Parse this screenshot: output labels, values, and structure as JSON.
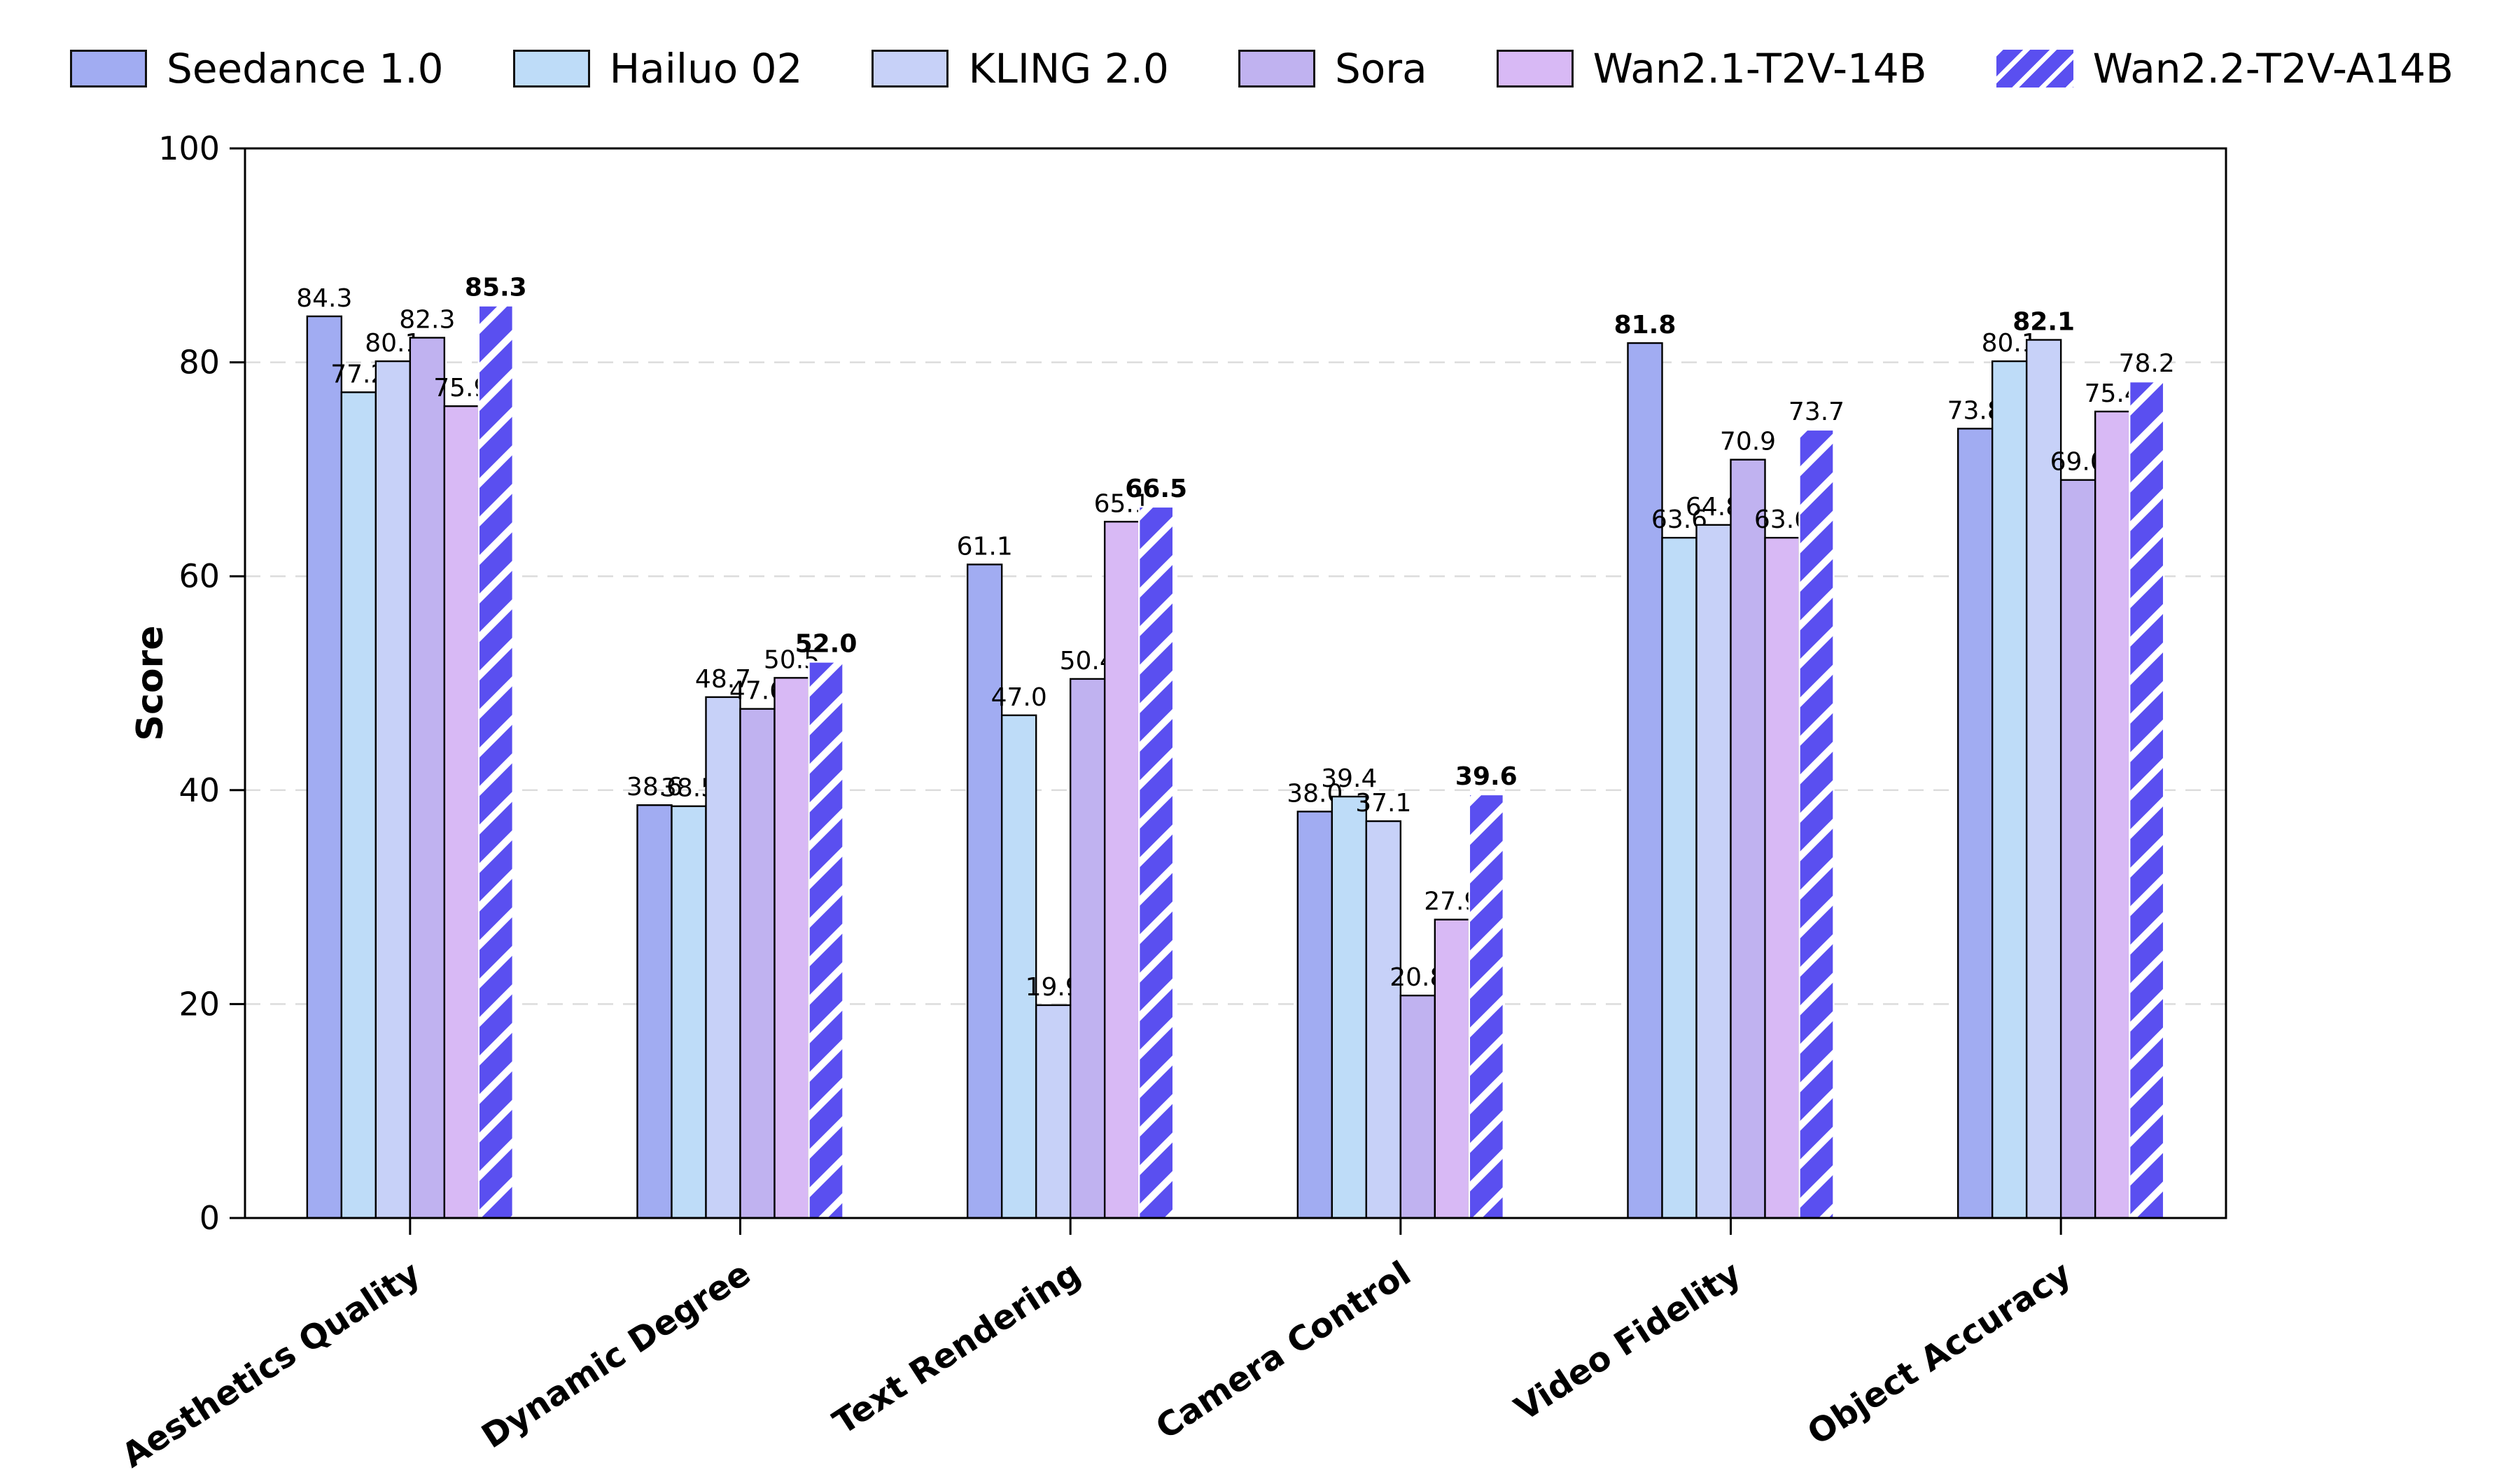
{
  "chart_data": {
    "type": "bar",
    "title": "",
    "ylabel": "Score",
    "xlabel": "",
    "ylim": [
      0,
      100
    ],
    "yticks": [
      0,
      20,
      40,
      60,
      80,
      100
    ],
    "grid": "horizontal dashed light-gray",
    "legend_position": "top row, outside plot",
    "bar_label_format": "one decimal",
    "bold_rule": "maximum value in each category is bold",
    "categories": [
      "Aesthetics Quality",
      "Dynamic Degree",
      "Text Rendering",
      "Camera Control",
      "Video Fidelity",
      "Object Accuracy"
    ],
    "series": [
      {
        "name": "Seedance 1.0",
        "color": "#A1ACF2",
        "hatch": false,
        "values": [
          84.3,
          38.6,
          61.1,
          38.0,
          81.8,
          73.8
        ]
      },
      {
        "name": "Hailuo 02",
        "color": "#BEDCF8",
        "hatch": false,
        "values": [
          77.2,
          38.5,
          47.0,
          39.4,
          63.6,
          80.1
        ]
      },
      {
        "name": "KLING 2.0",
        "color": "#C7D1F8",
        "hatch": false,
        "values": [
          80.1,
          48.7,
          19.9,
          37.1,
          64.8,
          82.1
        ]
      },
      {
        "name": "Sora",
        "color": "#C0B2F0",
        "hatch": false,
        "values": [
          82.3,
          47.6,
          50.4,
          20.8,
          70.9,
          69.0
        ]
      },
      {
        "name": "Wan2.1-T2V-14B",
        "color": "#D8B9F5",
        "hatch": false,
        "values": [
          75.9,
          50.5,
          65.1,
          27.9,
          63.6,
          75.4
        ]
      },
      {
        "name": "Wan2.2-T2V-A14B",
        "color": "#5A4FF0",
        "hatch": true,
        "hatch_color": "#FFFFFF",
        "values": [
          85.3,
          52.0,
          66.5,
          39.6,
          73.7,
          78.2
        ]
      }
    ],
    "colors": {
      "bar_edge": "#000000",
      "hatched_bar_edge": "#FFFFFF",
      "axis": "#000000",
      "gridline": "#DCDCDC",
      "text": "#000000",
      "background": "#FFFFFF"
    }
  }
}
